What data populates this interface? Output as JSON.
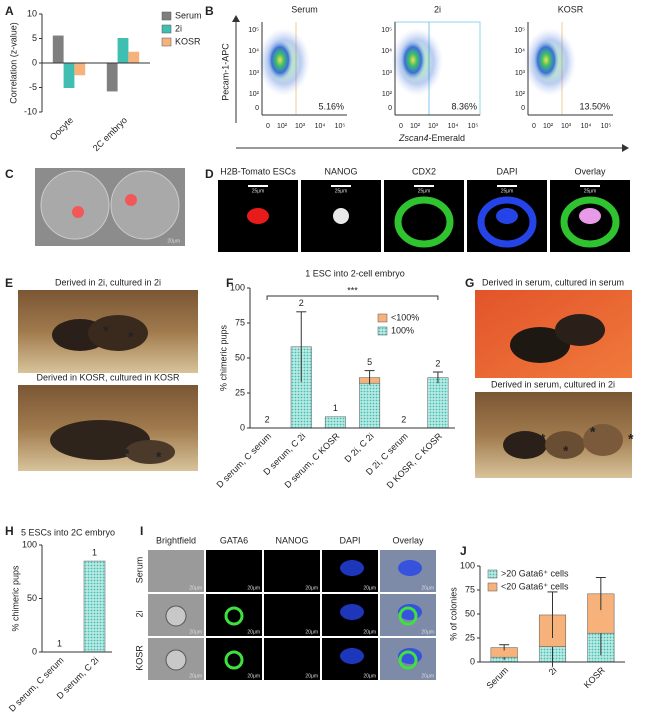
{
  "chart_data": [
    {
      "type": "bar",
      "y_label": "Correlation (z-value)",
      "categories": [
        "Oocyte",
        "2C embryo"
      ],
      "series": [
        {
          "name": "Serum",
          "color": "#7f7f7f",
          "values": [
            5.6,
            -5.8
          ]
        },
        {
          "name": "2i",
          "color": "#3fbfb2",
          "values": [
            -5.1,
            5.1
          ]
        },
        {
          "name": "KOSR",
          "color": "#f7b27b",
          "values": [
            -2.5,
            2.3
          ]
        }
      ],
      "ylim": [
        -10,
        10
      ],
      "yticks": [
        -10,
        -5,
        0,
        5,
        10
      ],
      "legend": "upper right"
    },
    {
      "type": "stacked_bar",
      "title": "1 ESC into 2-cell embryo",
      "y_label": "% chimeric pups",
      "categories": [
        "D serum, C serum",
        "D serum, C 2i",
        "D serum, C KOSR",
        "D 2i, C 2i",
        "D 2i, C serum",
        "D KOSR, C KOSR"
      ],
      "series": [
        {
          "name": "100%",
          "color": "#3fbfb2",
          "pattern": "dots",
          "values": [
            0,
            58,
            8,
            32,
            0,
            36
          ]
        },
        {
          "name": "<100%",
          "color": "#f7b27b",
          "values": [
            0,
            0,
            0,
            4,
            0,
            0
          ]
        }
      ],
      "errors": [
        null,
        25,
        null,
        5,
        null,
        4
      ],
      "counts": [
        2,
        2,
        1,
        5,
        2,
        2
      ],
      "significance": "***",
      "ylim": [
        0,
        100
      ],
      "yticks": [
        0,
        25,
        50,
        75,
        100
      ],
      "legend": "upper right",
      "legend_reversed": true
    },
    {
      "type": "bar",
      "title": "5 ESCs into 2C embryo",
      "y_label": "% chimeric pups",
      "categories": [
        "D serum, C serum",
        "D serum, C 2i"
      ],
      "values": [
        0,
        85
      ],
      "color": "#3fbfb2",
      "pattern": "dots",
      "counts": [
        1,
        1
      ],
      "ylim": [
        0,
        100
      ],
      "yticks": [
        0,
        50,
        100
      ]
    },
    {
      "type": "stacked_bar",
      "y_label": "% of colonies",
      "categories": [
        "Serum",
        "2i",
        "KOSR"
      ],
      "series": [
        {
          "name": ">20 Gata6⁺ cells",
          "color": "#3fbfb2",
          "pattern": "dots",
          "values": [
            5,
            16,
            30
          ],
          "errors": [
            3,
            21,
            23
          ]
        },
        {
          "name": "<20 Gata6⁺ cells",
          "color": "#f7b27b",
          "values": [
            10,
            33,
            41
          ],
          "errors": [
            3,
            24,
            17
          ]
        }
      ],
      "ylim": [
        0,
        100
      ],
      "yticks": [
        0,
        25,
        50,
        75,
        100
      ],
      "legend": "upper left"
    }
  ],
  "figure": {
    "panel_letters": [
      "A",
      "B",
      "C",
      "D",
      "E",
      "F",
      "G",
      "H",
      "I",
      "J"
    ],
    "b": {
      "titles": [
        "Serum",
        "2i",
        "KOSR"
      ],
      "percents": [
        "5.16%",
        "8.36%",
        "13.50%"
      ],
      "y_label": "Pecam-1-APC",
      "x_label": [
        "Zscan4",
        "-Emerald"
      ],
      "y_ticks": [
        "10⁵",
        "10⁴",
        "10³",
        "10²",
        "0"
      ],
      "x_ticks": [
        "0",
        "10²",
        "10³",
        "10⁴",
        "10⁵"
      ]
    },
    "c": {
      "scale": "20μm"
    },
    "d": {
      "columns": [
        "H2B-Tomato ESCs",
        "NANOG",
        "CDX2",
        "DAPI",
        "Overlay"
      ],
      "scale": "25μm"
    },
    "e": {
      "captions": [
        "Derived in 2i, cultured in 2i",
        "Derived in KOSR, cultured in KOSR"
      ],
      "marker": "*"
    },
    "g": {
      "captions": [
        "Derived in serum, cultured in serum",
        "Derived in serum, cultured in 2i"
      ]
    },
    "i": {
      "columns": [
        "Brightfield",
        "GATA6",
        "NANOG",
        "DAPI",
        "Overlay"
      ],
      "rows": [
        "Serum",
        "2i",
        "KOSR"
      ],
      "scale": "20μm"
    }
  }
}
